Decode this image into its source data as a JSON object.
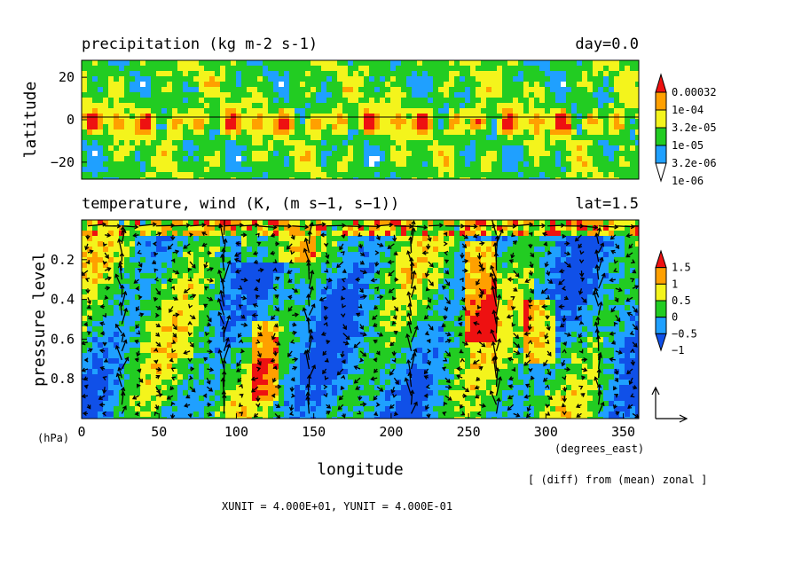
{
  "chart_data": [
    {
      "type": "heatmap",
      "title": "precipitation (kg m-2 s-1)",
      "title_right": "day=0.0",
      "ylabel": "latitude",
      "xlim": [
        0,
        360
      ],
      "ylim": [
        -28,
        28
      ],
      "y_ticks": [
        20,
        0,
        -20
      ],
      "y_tick_labels": [
        "20",
        "0",
        "−20"
      ],
      "zero_line": true,
      "colorbar": {
        "labels": [
          "0.00032",
          "1e-04",
          "3.2e-05",
          "1e-05",
          "3.2e-06",
          "1e-06"
        ],
        "colors": [
          "#ffffff",
          "#1fa0ff",
          "#22cc22",
          "#f4f41c",
          "#ffa000",
          "#ee1111"
        ]
      }
    },
    {
      "type": "heatmap",
      "title": "temperature, wind (K, (m s−1, s−1))",
      "title_right": "lat=1.5",
      "xlabel": "longitude",
      "ylabel": "pressure level",
      "y_unit": "(hPa)",
      "x_unit": "(degrees_east)",
      "xlim": [
        0,
        360
      ],
      "ylim": [
        1.0,
        0.0
      ],
      "x_ticks": [
        0,
        50,
        100,
        150,
        200,
        250,
        300,
        350
      ],
      "x_tick_labels": [
        "0",
        "50",
        "100",
        "150",
        "200",
        "250",
        "300",
        "350"
      ],
      "y_ticks": [
        0.2,
        0.4,
        0.6,
        0.8
      ],
      "y_tick_labels": [
        "0.2",
        "0.4",
        "0.6",
        "0.8"
      ],
      "colorbar": {
        "labels": [
          "1.5",
          "1",
          "0.5",
          "0",
          "−0.5",
          "−1"
        ],
        "colors": [
          "#1050e8",
          "#1fa0ff",
          "#22cc22",
          "#f4f41c",
          "#ffa000",
          "#ee1111"
        ]
      },
      "vectors": true
    }
  ],
  "note": "[ (diff) from (mean) zonal ]",
  "units_line": "XUNIT = 4.000E+01, YUNIT = 4.000E-01"
}
